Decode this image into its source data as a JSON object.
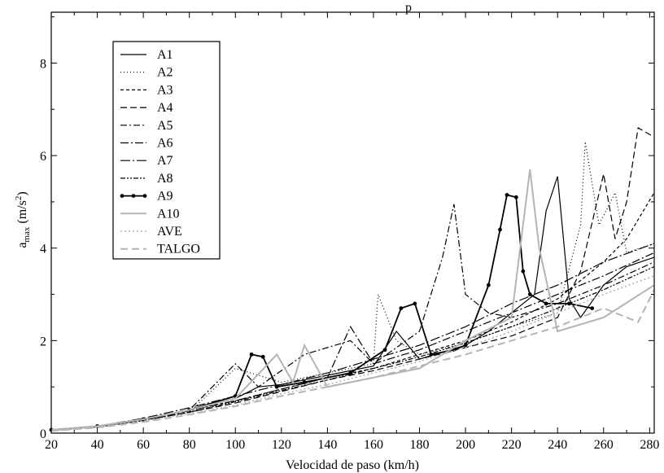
{
  "chart_data": {
    "type": "line",
    "title": "p",
    "xlabel": "Velocidad de paso (km/h)",
    "ylabel_parts": {
      "base": "a",
      "sub": "max",
      "unit_open": " (m/s",
      "sup": "2",
      "unit_close": ")"
    },
    "xlim": [
      20,
      282
    ],
    "ylim": [
      0,
      9.1
    ],
    "x_ticks": [
      "20",
      "40",
      "60",
      "80",
      "100",
      "120",
      "140",
      "160",
      "180",
      "200",
      "220",
      "240",
      "260",
      "280"
    ],
    "y_ticks": [
      "0",
      "2",
      "4",
      "6",
      "8"
    ],
    "legend_position": "top-left",
    "grid": false,
    "series": [
      {
        "name": "A1",
        "color": "#000000",
        "dash": "",
        "width": 1.2,
        "markers": false,
        "points": [
          [
            20,
            0.07
          ],
          [
            40,
            0.15
          ],
          [
            60,
            0.3
          ],
          [
            80,
            0.5
          ],
          [
            100,
            0.75
          ],
          [
            110,
            1.0
          ],
          [
            120,
            1.05
          ],
          [
            140,
            1.25
          ],
          [
            160,
            1.45
          ],
          [
            170,
            2.2
          ],
          [
            180,
            1.6
          ],
          [
            200,
            1.9
          ],
          [
            210,
            2.2
          ],
          [
            220,
            2.6
          ],
          [
            230,
            3.0
          ],
          [
            235,
            4.8
          ],
          [
            240,
            5.55
          ],
          [
            245,
            2.9
          ],
          [
            250,
            2.5
          ],
          [
            260,
            3.2
          ],
          [
            270,
            3.6
          ],
          [
            282,
            3.8
          ]
        ]
      },
      {
        "name": "A2",
        "color": "#000000",
        "dash": "1,3",
        "width": 1.2,
        "markers": false,
        "points": [
          [
            20,
            0.06
          ],
          [
            40,
            0.14
          ],
          [
            60,
            0.28
          ],
          [
            80,
            0.45
          ],
          [
            100,
            1.4
          ],
          [
            120,
            1.1
          ],
          [
            140,
            1.3
          ],
          [
            160,
            1.5
          ],
          [
            162,
            3.0
          ],
          [
            170,
            2.0
          ],
          [
            180,
            1.7
          ],
          [
            200,
            1.95
          ],
          [
            220,
            2.3
          ],
          [
            240,
            2.6
          ],
          [
            250,
            4.5
          ],
          [
            252,
            6.3
          ],
          [
            258,
            4.5
          ],
          [
            265,
            5.2
          ],
          [
            270,
            3.9
          ],
          [
            282,
            4.1
          ]
        ]
      },
      {
        "name": "A3",
        "color": "#000000",
        "dash": "4,3",
        "width": 1.2,
        "markers": false,
        "points": [
          [
            20,
            0.07
          ],
          [
            40,
            0.15
          ],
          [
            60,
            0.3
          ],
          [
            80,
            0.5
          ],
          [
            100,
            0.7
          ],
          [
            120,
            0.95
          ],
          [
            140,
            1.2
          ],
          [
            160,
            1.4
          ],
          [
            180,
            1.7
          ],
          [
            200,
            2.0
          ],
          [
            220,
            2.4
          ],
          [
            240,
            2.9
          ],
          [
            250,
            3.3
          ],
          [
            260,
            3.7
          ],
          [
            270,
            4.2
          ],
          [
            282,
            5.2
          ]
        ]
      },
      {
        "name": "A4",
        "color": "#000000",
        "dash": "8,4",
        "width": 1.2,
        "markers": false,
        "points": [
          [
            20,
            0.07
          ],
          [
            40,
            0.14
          ],
          [
            60,
            0.28
          ],
          [
            80,
            0.45
          ],
          [
            100,
            0.65
          ],
          [
            120,
            0.9
          ],
          [
            140,
            1.15
          ],
          [
            160,
            1.35
          ],
          [
            180,
            1.6
          ],
          [
            200,
            1.85
          ],
          [
            220,
            2.1
          ],
          [
            240,
            2.5
          ],
          [
            250,
            3.5
          ],
          [
            260,
            5.6
          ],
          [
            265,
            4.2
          ],
          [
            270,
            5.0
          ],
          [
            275,
            6.6
          ],
          [
            282,
            6.4
          ]
        ]
      },
      {
        "name": "A5",
        "color": "#000000",
        "dash": "8,3,2,3",
        "width": 1.2,
        "markers": false,
        "points": [
          [
            20,
            0.07
          ],
          [
            40,
            0.15
          ],
          [
            60,
            0.3
          ],
          [
            80,
            0.5
          ],
          [
            100,
            1.5
          ],
          [
            110,
            1.0
          ],
          [
            130,
            1.7
          ],
          [
            150,
            2.0
          ],
          [
            160,
            1.5
          ],
          [
            180,
            2.2
          ],
          [
            190,
            3.8
          ],
          [
            195,
            4.95
          ],
          [
            200,
            3.0
          ],
          [
            210,
            2.6
          ],
          [
            220,
            2.5
          ],
          [
            240,
            2.8
          ],
          [
            260,
            3.2
          ],
          [
            282,
            3.7
          ]
        ]
      },
      {
        "name": "A6",
        "color": "#000000",
        "dash": "10,3,2,3",
        "width": 1.2,
        "markers": false,
        "points": [
          [
            20,
            0.06
          ],
          [
            40,
            0.14
          ],
          [
            60,
            0.28
          ],
          [
            80,
            0.48
          ],
          [
            100,
            0.7
          ],
          [
            120,
            0.95
          ],
          [
            140,
            1.2
          ],
          [
            150,
            2.3
          ],
          [
            160,
            1.5
          ],
          [
            180,
            1.8
          ],
          [
            200,
            2.2
          ],
          [
            220,
            2.6
          ],
          [
            240,
            3.0
          ],
          [
            260,
            3.4
          ],
          [
            282,
            3.9
          ]
        ]
      },
      {
        "name": "A7",
        "color": "#000000",
        "dash": "12,3,2,3",
        "width": 1.2,
        "markers": false,
        "points": [
          [
            20,
            0.07
          ],
          [
            40,
            0.15
          ],
          [
            60,
            0.32
          ],
          [
            80,
            0.55
          ],
          [
            100,
            0.8
          ],
          [
            120,
            1.05
          ],
          [
            140,
            1.3
          ],
          [
            160,
            1.6
          ],
          [
            180,
            1.9
          ],
          [
            200,
            2.3
          ],
          [
            220,
            2.8
          ],
          [
            240,
            3.2
          ],
          [
            260,
            3.7
          ],
          [
            282,
            4.1
          ]
        ]
      },
      {
        "name": "A8",
        "color": "#000000",
        "dash": "6,2,2,2,2,2",
        "width": 1.2,
        "markers": false,
        "points": [
          [
            20,
            0.06
          ],
          [
            40,
            0.13
          ],
          [
            60,
            0.27
          ],
          [
            80,
            0.45
          ],
          [
            100,
            0.68
          ],
          [
            120,
            0.92
          ],
          [
            140,
            1.15
          ],
          [
            160,
            1.4
          ],
          [
            180,
            1.65
          ],
          [
            200,
            1.95
          ],
          [
            220,
            2.3
          ],
          [
            240,
            2.7
          ],
          [
            260,
            3.1
          ],
          [
            282,
            3.6
          ]
        ]
      },
      {
        "name": "A9",
        "color": "#000000",
        "dash": "",
        "width": 1.8,
        "markers": true,
        "points": [
          [
            20,
            0.07
          ],
          [
            40,
            0.15
          ],
          [
            60,
            0.3
          ],
          [
            80,
            0.5
          ],
          [
            100,
            0.8
          ],
          [
            107,
            1.7
          ],
          [
            112,
            1.65
          ],
          [
            118,
            1.0
          ],
          [
            130,
            1.1
          ],
          [
            150,
            1.3
          ],
          [
            165,
            1.8
          ],
          [
            172,
            2.7
          ],
          [
            178,
            2.8
          ],
          [
            185,
            1.7
          ],
          [
            195,
            1.8
          ],
          [
            200,
            1.9
          ],
          [
            210,
            3.2
          ],
          [
            215,
            4.4
          ],
          [
            218,
            5.15
          ],
          [
            222,
            5.1
          ],
          [
            225,
            3.5
          ],
          [
            228,
            3.0
          ],
          [
            235,
            2.8
          ],
          [
            245,
            2.8
          ],
          [
            255,
            2.7
          ]
        ]
      },
      {
        "name": "A10",
        "color": "#b4b4b4",
        "dash": "",
        "width": 2.0,
        "markers": false,
        "points": [
          [
            20,
            0.07
          ],
          [
            40,
            0.15
          ],
          [
            60,
            0.3
          ],
          [
            80,
            0.5
          ],
          [
            100,
            0.75
          ],
          [
            118,
            1.7
          ],
          [
            125,
            1.1
          ],
          [
            130,
            1.9
          ],
          [
            140,
            1.0
          ],
          [
            160,
            1.2
          ],
          [
            180,
            1.4
          ],
          [
            200,
            2.0
          ],
          [
            220,
            2.5
          ],
          [
            225,
            4.5
          ],
          [
            228,
            5.7
          ],
          [
            232,
            4.0
          ],
          [
            240,
            2.2
          ],
          [
            260,
            2.5
          ],
          [
            282,
            3.2
          ]
        ]
      },
      {
        "name": "AVE",
        "color": "#b4b4b4",
        "dash": "2,3",
        "width": 1.6,
        "markers": false,
        "points": [
          [
            20,
            0.06
          ],
          [
            40,
            0.13
          ],
          [
            60,
            0.26
          ],
          [
            80,
            0.42
          ],
          [
            100,
            0.6
          ],
          [
            120,
            0.85
          ],
          [
            140,
            1.05
          ],
          [
            160,
            1.3
          ],
          [
            180,
            1.55
          ],
          [
            200,
            1.85
          ],
          [
            220,
            2.2
          ],
          [
            240,
            2.6
          ],
          [
            260,
            3.0
          ],
          [
            282,
            3.4
          ]
        ]
      },
      {
        "name": "TALGO",
        "color": "#b4b4b4",
        "dash": "9,5",
        "width": 2.0,
        "markers": false,
        "points": [
          [
            20,
            0.05
          ],
          [
            40,
            0.12
          ],
          [
            60,
            0.24
          ],
          [
            80,
            0.4
          ],
          [
            100,
            0.58
          ],
          [
            120,
            0.8
          ],
          [
            140,
            1.0
          ],
          [
            160,
            1.2
          ],
          [
            180,
            1.45
          ],
          [
            200,
            1.7
          ],
          [
            220,
            2.0
          ],
          [
            240,
            2.3
          ],
          [
            260,
            2.7
          ],
          [
            275,
            2.4
          ],
          [
            282,
            3.1
          ]
        ]
      }
    ]
  }
}
